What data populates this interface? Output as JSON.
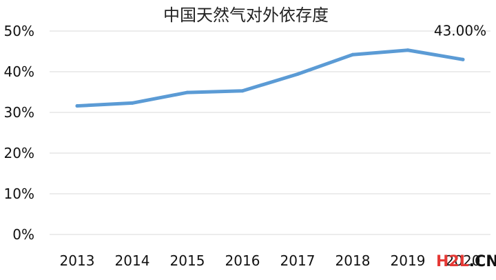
{
  "chart_data": {
    "type": "line",
    "title": "中国天然气对外依存度",
    "xlabel": "",
    "ylabel": "",
    "categories": [
      "2013",
      "2014",
      "2015",
      "2016",
      "2017",
      "2018",
      "2019",
      "2020"
    ],
    "series": [
      {
        "values": [
          31.6,
          32.3,
          34.9,
          35.3,
          39.4,
          44.2,
          45.3,
          43.0
        ]
      }
    ],
    "ylim": [
      0,
      50
    ],
    "yticks": [
      "0%",
      "10%",
      "20%",
      "30%",
      "40%",
      "50%"
    ],
    "grid": true,
    "legend": "none",
    "annotation": {
      "category": "2020",
      "text": "43.00%"
    },
    "line_color": "#5b9bd5"
  },
  "watermark": {
    "red": "H2L",
    "black": ".CN",
    "red_color": "#e53935",
    "black_color": "#111111"
  }
}
